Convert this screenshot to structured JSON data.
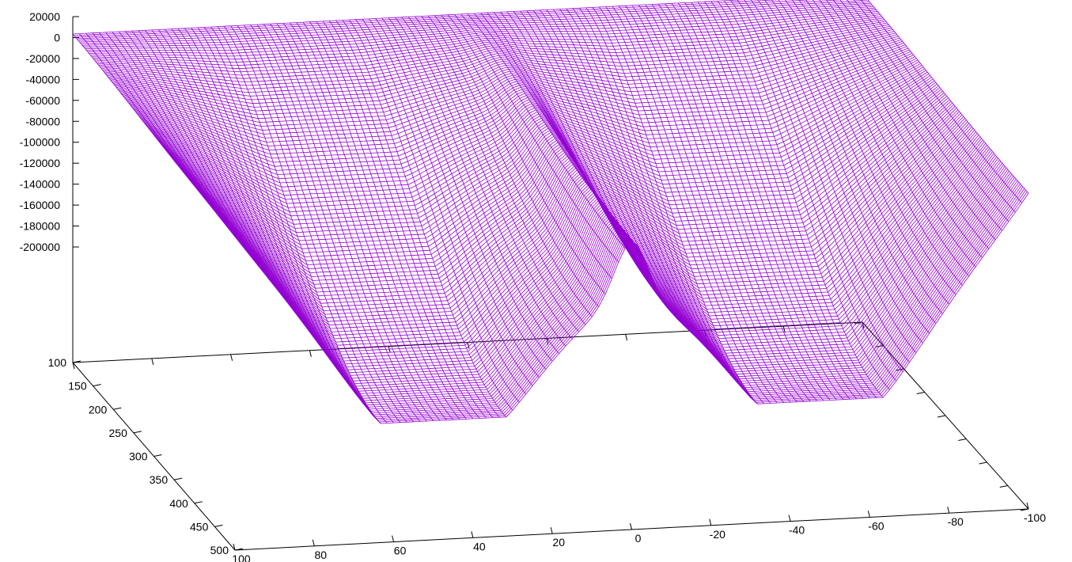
{
  "chart_data": {
    "type": "surface",
    "title": "",
    "xlabel": "",
    "ylabel": "",
    "zlabel": "",
    "color": "#9400D3",
    "z_axis": {
      "range": [
        -200000,
        20000
      ],
      "ticks": [
        {
          "value": 20000,
          "label": "20000"
        },
        {
          "value": 0,
          "label": "0"
        },
        {
          "value": -20000,
          "label": "-20000"
        },
        {
          "value": -40000,
          "label": "-40000"
        },
        {
          "value": -60000,
          "label": "-60000"
        },
        {
          "value": -80000,
          "label": "-80000"
        },
        {
          "value": -100000,
          "label": "-100000"
        },
        {
          "value": -120000,
          "label": "-120000"
        },
        {
          "value": -140000,
          "label": "-140000"
        },
        {
          "value": -160000,
          "label": "-160000"
        },
        {
          "value": -180000,
          "label": "-180000"
        },
        {
          "value": -200000,
          "label": "-200000"
        }
      ]
    },
    "depth_axis": {
      "range": [
        100,
        500
      ],
      "ticks": [
        {
          "value": 100,
          "label": "100"
        },
        {
          "value": 150,
          "label": "150"
        },
        {
          "value": 200,
          "label": "200"
        },
        {
          "value": 250,
          "label": "250"
        },
        {
          "value": 300,
          "label": "300"
        },
        {
          "value": 350,
          "label": "350"
        },
        {
          "value": 400,
          "label": "400"
        },
        {
          "value": 450,
          "label": "450"
        },
        {
          "value": 500,
          "label": "500"
        }
      ]
    },
    "horizontal_axis": {
      "range": [
        100,
        -100
      ],
      "ticks": [
        {
          "value": 100,
          "label": "100"
        },
        {
          "value": 80,
          "label": "80"
        },
        {
          "value": 60,
          "label": "60"
        },
        {
          "value": 40,
          "label": "40"
        },
        {
          "value": 20,
          "label": "20"
        },
        {
          "value": 0,
          "label": "0"
        },
        {
          "value": -20,
          "label": "-20"
        },
        {
          "value": -40,
          "label": "-40"
        },
        {
          "value": -60,
          "label": "-60"
        },
        {
          "value": -80,
          "label": "-80"
        },
        {
          "value": -100,
          "label": "-100"
        }
      ]
    },
    "surface": {
      "description": "two deep wells separated by a central ridge near 0",
      "u_range": [
        100,
        -100
      ],
      "v_range": [
        100,
        500
      ],
      "z_min": -200000,
      "z_max": 0
    }
  }
}
